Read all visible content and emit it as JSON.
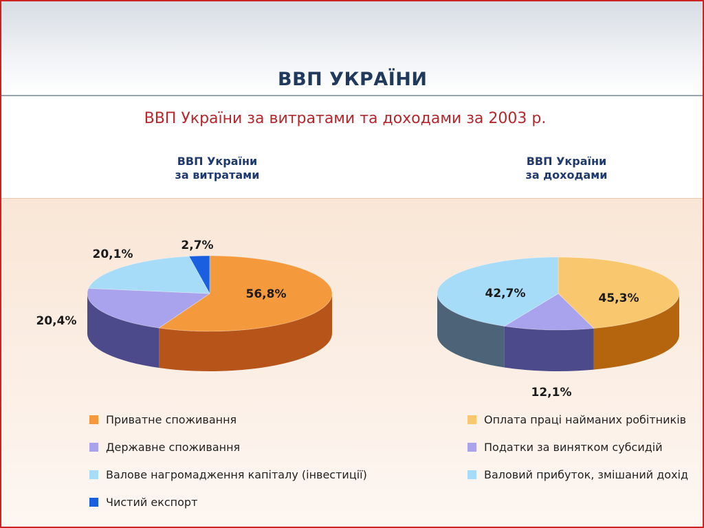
{
  "slide": {
    "title": "ВВП УКРАЇНИ",
    "subtitle": "ВВП України за витратами та доходами за  2003 р."
  },
  "chart_data": [
    {
      "type": "pie",
      "title_line1": "ВВП України",
      "title_line2": "за витратами",
      "slices": [
        {
          "name": "Приватне споживання",
          "value": 56.8,
          "label": "56,8%",
          "top_color": "#f59a3c",
          "side_color": "#b6541a"
        },
        {
          "name": "Державне споживання",
          "value": 20.4,
          "label": "20,4%",
          "top_color": "#a9a3ee",
          "side_color": "#4d4a8c"
        },
        {
          "name": "Валове нагромадження  капіталу (інвестиції)",
          "value": 20.1,
          "label": "20,1%",
          "top_color": "#a6dcf8",
          "side_color": "#6a8fa8"
        },
        {
          "name": "Чистий експорт",
          "value": 2.7,
          "label": "2,7%",
          "top_color": "#1a5fe0",
          "side_color": "#0d3a9a"
        }
      ]
    },
    {
      "type": "pie",
      "title_line1": "ВВП України",
      "title_line2": "за доходами",
      "slices": [
        {
          "name": "Оплата праці найманих робітників",
          "value": 45.3,
          "label": "45,3%",
          "top_color": "#f9c86e",
          "side_color": "#b5650e"
        },
        {
          "name": "Податки за винятком субсидій",
          "value": 12.1,
          "label": "12,1%",
          "top_color": "#a9a3ee",
          "side_color": "#4d4a8c"
        },
        {
          "name": "Валовий прибуток, змішаний дохід",
          "value": 42.7,
          "label": "42,7%",
          "top_color": "#a6dcf8",
          "side_color": "#4d6478"
        }
      ]
    }
  ]
}
